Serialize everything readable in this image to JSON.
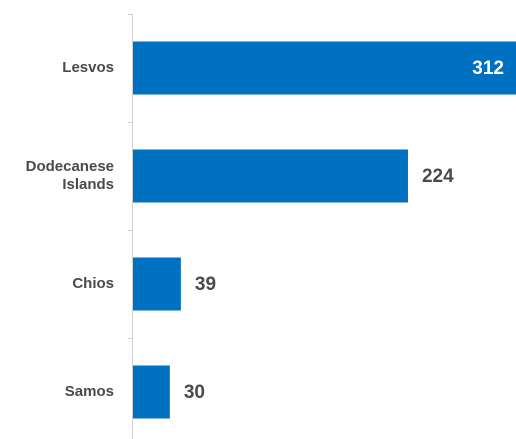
{
  "chart_data": {
    "type": "bar",
    "orientation": "horizontal",
    "title": "",
    "xlabel": "",
    "ylabel": "",
    "categories": [
      [
        "Lesvos"
      ],
      [
        "Dodecanese",
        "Islands"
      ],
      [
        "Chios"
      ],
      [
        "Samos"
      ]
    ],
    "values": [
      312,
      224,
      39,
      30
    ],
    "xlim": [
      0,
      312
    ],
    "grid": false,
    "legend": "none",
    "colors": {
      "bar": "#0070c0",
      "value_label_inside": "#ffffff",
      "value_label_outside": "#4a4a4a",
      "category_label": "#4a4a4a",
      "axis": "#d0d0d0"
    }
  }
}
